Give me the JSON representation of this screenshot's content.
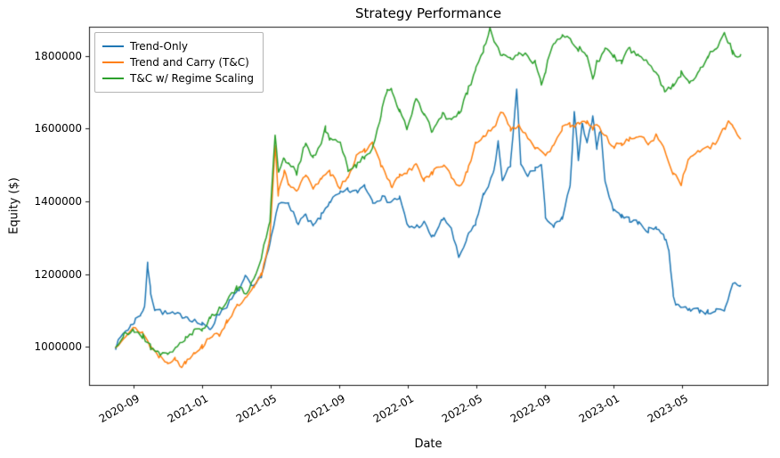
{
  "chart_data": {
    "type": "line",
    "title": "Strategy Performance",
    "xlabel": "Date",
    "ylabel": "Equity ($)",
    "legend_position": "upper left",
    "grid": false,
    "xlim": [
      2020.45,
      2023.75
    ],
    "ylim": [
      895000,
      1880000
    ],
    "x_tick_labels": [
      "2020-09",
      "2021-01",
      "2021-05",
      "2021-09",
      "2022-01",
      "2022-05",
      "2022-09",
      "2023-01",
      "2023-05"
    ],
    "x_tick_values": [
      2020.6667,
      2021.0,
      2021.3333,
      2021.6667,
      2022.0,
      2022.3333,
      2022.6667,
      2023.0,
      2023.3333
    ],
    "y_tick_labels": [
      "1000000",
      "1200000",
      "1400000",
      "1600000",
      "1800000"
    ],
    "y_tick_values": [
      1000000,
      1200000,
      1400000,
      1600000,
      1800000
    ],
    "series": [
      {
        "name": "Trend-Only",
        "color": "#1f77b4",
        "seed": 7,
        "noise": 8000,
        "points": [
          [
            2020.58,
            1000000
          ],
          [
            2020.62,
            1040000
          ],
          [
            2020.65,
            1055000
          ],
          [
            2020.67,
            1070000
          ],
          [
            2020.7,
            1090000
          ],
          [
            2020.72,
            1110000
          ],
          [
            2020.735,
            1225000
          ],
          [
            2020.75,
            1150000
          ],
          [
            2020.77,
            1105000
          ],
          [
            2020.83,
            1090000
          ],
          [
            2020.92,
            1085000
          ],
          [
            2021.0,
            1060000
          ],
          [
            2021.04,
            1050000
          ],
          [
            2021.08,
            1090000
          ],
          [
            2021.13,
            1120000
          ],
          [
            2021.17,
            1150000
          ],
          [
            2021.21,
            1190000
          ],
          [
            2021.25,
            1160000
          ],
          [
            2021.29,
            1200000
          ],
          [
            2021.33,
            1280000
          ],
          [
            2021.37,
            1390000
          ],
          [
            2021.42,
            1400000
          ],
          [
            2021.46,
            1340000
          ],
          [
            2021.5,
            1360000
          ],
          [
            2021.54,
            1330000
          ],
          [
            2021.58,
            1360000
          ],
          [
            2021.62,
            1400000
          ],
          [
            2021.67,
            1420000
          ],
          [
            2021.71,
            1430000
          ],
          [
            2021.75,
            1425000
          ],
          [
            2021.79,
            1445000
          ],
          [
            2021.83,
            1400000
          ],
          [
            2021.87,
            1410000
          ],
          [
            2021.92,
            1400000
          ],
          [
            2021.96,
            1410000
          ],
          [
            2022.0,
            1330000
          ],
          [
            2022.04,
            1330000
          ],
          [
            2022.08,
            1340000
          ],
          [
            2022.12,
            1300000
          ],
          [
            2022.17,
            1350000
          ],
          [
            2022.21,
            1330000
          ],
          [
            2022.25,
            1240000
          ],
          [
            2022.29,
            1300000
          ],
          [
            2022.33,
            1340000
          ],
          [
            2022.37,
            1420000
          ],
          [
            2022.42,
            1480000
          ],
          [
            2022.44,
            1570000
          ],
          [
            2022.46,
            1450000
          ],
          [
            2022.5,
            1500000
          ],
          [
            2022.53,
            1710000
          ],
          [
            2022.55,
            1500000
          ],
          [
            2022.58,
            1470000
          ],
          [
            2022.62,
            1490000
          ],
          [
            2022.65,
            1500000
          ],
          [
            2022.67,
            1360000
          ],
          [
            2022.71,
            1330000
          ],
          [
            2022.75,
            1350000
          ],
          [
            2022.79,
            1440000
          ],
          [
            2022.81,
            1640000
          ],
          [
            2022.83,
            1520000
          ],
          [
            2022.85,
            1620000
          ],
          [
            2022.87,
            1560000
          ],
          [
            2022.9,
            1630000
          ],
          [
            2022.92,
            1550000
          ],
          [
            2022.94,
            1600000
          ],
          [
            2022.96,
            1450000
          ],
          [
            2023.0,
            1380000
          ],
          [
            2023.04,
            1360000
          ],
          [
            2023.08,
            1350000
          ],
          [
            2023.12,
            1340000
          ],
          [
            2023.17,
            1320000
          ],
          [
            2023.21,
            1330000
          ],
          [
            2023.25,
            1300000
          ],
          [
            2023.27,
            1270000
          ],
          [
            2023.29,
            1150000
          ],
          [
            2023.31,
            1110000
          ],
          [
            2023.37,
            1105000
          ],
          [
            2023.42,
            1100000
          ],
          [
            2023.46,
            1095000
          ],
          [
            2023.5,
            1100000
          ],
          [
            2023.54,
            1095000
          ],
          [
            2023.56,
            1130000
          ],
          [
            2023.58,
            1175000
          ],
          [
            2023.62,
            1170000
          ]
        ]
      },
      {
        "name": "Trend and Carry (T&C)",
        "color": "#ff7f0e",
        "seed": 13,
        "noise": 7000,
        "points": [
          [
            2020.58,
            1000000
          ],
          [
            2020.62,
            1030000
          ],
          [
            2020.67,
            1050000
          ],
          [
            2020.71,
            1040000
          ],
          [
            2020.75,
            1000000
          ],
          [
            2020.79,
            975000
          ],
          [
            2020.83,
            960000
          ],
          [
            2020.87,
            965000
          ],
          [
            2020.9,
            945000
          ],
          [
            2020.92,
            960000
          ],
          [
            2020.96,
            985000
          ],
          [
            2021.0,
            1000000
          ],
          [
            2021.04,
            1030000
          ],
          [
            2021.08,
            1030000
          ],
          [
            2021.12,
            1070000
          ],
          [
            2021.17,
            1110000
          ],
          [
            2021.21,
            1130000
          ],
          [
            2021.25,
            1160000
          ],
          [
            2021.29,
            1200000
          ],
          [
            2021.33,
            1300000
          ],
          [
            2021.355,
            1560000
          ],
          [
            2021.37,
            1420000
          ],
          [
            2021.4,
            1480000
          ],
          [
            2021.42,
            1450000
          ],
          [
            2021.46,
            1430000
          ],
          [
            2021.5,
            1470000
          ],
          [
            2021.54,
            1440000
          ],
          [
            2021.58,
            1460000
          ],
          [
            2021.62,
            1480000
          ],
          [
            2021.67,
            1440000
          ],
          [
            2021.71,
            1470000
          ],
          [
            2021.75,
            1520000
          ],
          [
            2021.79,
            1540000
          ],
          [
            2021.83,
            1560000
          ],
          [
            2021.87,
            1500000
          ],
          [
            2021.92,
            1440000
          ],
          [
            2021.96,
            1470000
          ],
          [
            2022.0,
            1480000
          ],
          [
            2022.04,
            1500000
          ],
          [
            2022.08,
            1460000
          ],
          [
            2022.12,
            1480000
          ],
          [
            2022.17,
            1500000
          ],
          [
            2022.21,
            1470000
          ],
          [
            2022.25,
            1440000
          ],
          [
            2022.29,
            1480000
          ],
          [
            2022.33,
            1560000
          ],
          [
            2022.37,
            1580000
          ],
          [
            2022.42,
            1600000
          ],
          [
            2022.46,
            1650000
          ],
          [
            2022.5,
            1600000
          ],
          [
            2022.54,
            1610000
          ],
          [
            2022.58,
            1580000
          ],
          [
            2022.62,
            1550000
          ],
          [
            2022.67,
            1520000
          ],
          [
            2022.71,
            1560000
          ],
          [
            2022.75,
            1600000
          ],
          [
            2022.79,
            1610000
          ],
          [
            2022.83,
            1610000
          ],
          [
            2022.87,
            1620000
          ],
          [
            2022.9,
            1600000
          ],
          [
            2022.92,
            1610000
          ],
          [
            2022.96,
            1580000
          ],
          [
            2023.0,
            1550000
          ],
          [
            2023.04,
            1560000
          ],
          [
            2023.08,
            1570000
          ],
          [
            2023.12,
            1580000
          ],
          [
            2023.17,
            1560000
          ],
          [
            2023.21,
            1580000
          ],
          [
            2023.25,
            1540000
          ],
          [
            2023.29,
            1480000
          ],
          [
            2023.33,
            1450000
          ],
          [
            2023.37,
            1520000
          ],
          [
            2023.42,
            1540000
          ],
          [
            2023.46,
            1545000
          ],
          [
            2023.5,
            1560000
          ],
          [
            2023.54,
            1600000
          ],
          [
            2023.56,
            1620000
          ],
          [
            2023.58,
            1610000
          ],
          [
            2023.62,
            1570000
          ]
        ]
      },
      {
        "name": "T&C w/ Regime Scaling",
        "color": "#2ca02c",
        "seed": 21,
        "noise": 9000,
        "points": [
          [
            2020.58,
            1000000
          ],
          [
            2020.62,
            1030000
          ],
          [
            2020.67,
            1045000
          ],
          [
            2020.71,
            1030000
          ],
          [
            2020.75,
            1000000
          ],
          [
            2020.79,
            985000
          ],
          [
            2020.83,
            975000
          ],
          [
            2020.87,
            1000000
          ],
          [
            2020.92,
            1020000
          ],
          [
            2020.96,
            1040000
          ],
          [
            2021.0,
            1050000
          ],
          [
            2021.04,
            1080000
          ],
          [
            2021.08,
            1100000
          ],
          [
            2021.12,
            1130000
          ],
          [
            2021.17,
            1160000
          ],
          [
            2021.21,
            1150000
          ],
          [
            2021.25,
            1180000
          ],
          [
            2021.29,
            1250000
          ],
          [
            2021.33,
            1350000
          ],
          [
            2021.355,
            1590000
          ],
          [
            2021.37,
            1480000
          ],
          [
            2021.4,
            1520000
          ],
          [
            2021.42,
            1500000
          ],
          [
            2021.46,
            1480000
          ],
          [
            2021.5,
            1560000
          ],
          [
            2021.54,
            1520000
          ],
          [
            2021.58,
            1560000
          ],
          [
            2021.6,
            1600000
          ],
          [
            2021.62,
            1570000
          ],
          [
            2021.67,
            1560000
          ],
          [
            2021.71,
            1490000
          ],
          [
            2021.75,
            1500000
          ],
          [
            2021.79,
            1520000
          ],
          [
            2021.83,
            1550000
          ],
          [
            2021.87,
            1640000
          ],
          [
            2021.9,
            1700000
          ],
          [
            2021.92,
            1710000
          ],
          [
            2021.96,
            1650000
          ],
          [
            2022.0,
            1600000
          ],
          [
            2022.04,
            1680000
          ],
          [
            2022.08,
            1640000
          ],
          [
            2022.12,
            1590000
          ],
          [
            2022.17,
            1640000
          ],
          [
            2022.21,
            1620000
          ],
          [
            2022.25,
            1640000
          ],
          [
            2022.29,
            1700000
          ],
          [
            2022.33,
            1760000
          ],
          [
            2022.37,
            1820000
          ],
          [
            2022.4,
            1870000
          ],
          [
            2022.42,
            1840000
          ],
          [
            2022.46,
            1800000
          ],
          [
            2022.5,
            1790000
          ],
          [
            2022.54,
            1810000
          ],
          [
            2022.58,
            1800000
          ],
          [
            2022.62,
            1780000
          ],
          [
            2022.65,
            1720000
          ],
          [
            2022.67,
            1760000
          ],
          [
            2022.71,
            1840000
          ],
          [
            2022.75,
            1860000
          ],
          [
            2022.79,
            1850000
          ],
          [
            2022.83,
            1820000
          ],
          [
            2022.87,
            1800000
          ],
          [
            2022.9,
            1740000
          ],
          [
            2022.92,
            1780000
          ],
          [
            2022.96,
            1820000
          ],
          [
            2023.0,
            1800000
          ],
          [
            2023.04,
            1780000
          ],
          [
            2023.08,
            1820000
          ],
          [
            2023.12,
            1800000
          ],
          [
            2023.17,
            1780000
          ],
          [
            2023.21,
            1760000
          ],
          [
            2023.25,
            1700000
          ],
          [
            2023.29,
            1720000
          ],
          [
            2023.33,
            1750000
          ],
          [
            2023.37,
            1730000
          ],
          [
            2023.42,
            1760000
          ],
          [
            2023.46,
            1800000
          ],
          [
            2023.5,
            1820000
          ],
          [
            2023.54,
            1860000
          ],
          [
            2023.56,
            1840000
          ],
          [
            2023.58,
            1810000
          ],
          [
            2023.62,
            1800000
          ]
        ]
      }
    ]
  }
}
